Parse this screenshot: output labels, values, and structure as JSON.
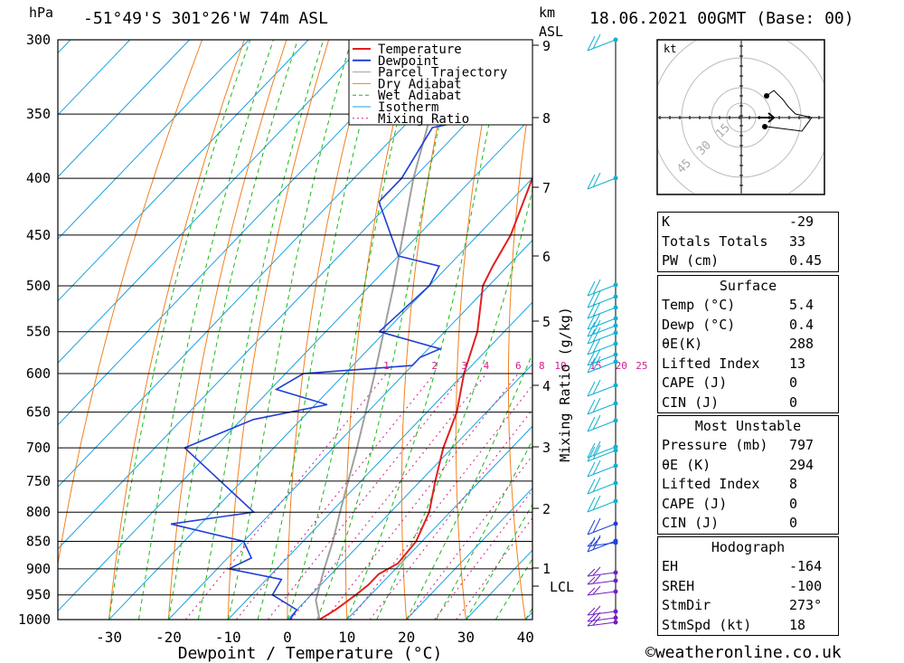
{
  "header": {
    "location": "-51°49'S 301°26'W 74m ASL",
    "datetime": "18.06.2021 00GMT (Base: 00)",
    "hpa_label": "hPa",
    "km_label": "km",
    "asl_label": "ASL"
  },
  "footer": {
    "credit": "©weatheronline.co.uk"
  },
  "chart_data": {
    "type": "skew-t",
    "xlabel": "Dewpoint / Temperature (°C)",
    "ylabel_right": "Mixing Ratio (g/kg)",
    "x_ticks": [
      -30,
      -20,
      -10,
      0,
      10,
      20,
      30,
      40
    ],
    "pressure_levels": [
      300,
      350,
      400,
      450,
      500,
      550,
      600,
      650,
      700,
      750,
      800,
      850,
      900,
      950,
      1000
    ],
    "km_ticks": [
      "9",
      "8",
      "7",
      "6",
      "5",
      "4",
      "3",
      "2",
      "1",
      "LCL"
    ],
    "mixing_ratio_labels": [
      "1",
      "2",
      "3",
      "4",
      "6",
      "8",
      "10",
      "15",
      "20",
      "25"
    ],
    "legend": [
      "Temperature",
      "Dewpoint",
      "Parcel Trajectory",
      "Dry Adiabat",
      "Wet Adiabat",
      "Isotherm",
      "Mixing Ratio"
    ],
    "temperature": [
      {
        "p": 1000,
        "t": 5.4
      },
      {
        "p": 980,
        "t": 6.5
      },
      {
        "p": 950,
        "t": 7.5
      },
      {
        "p": 930,
        "t": 8.0
      },
      {
        "p": 910,
        "t": 8.0
      },
      {
        "p": 890,
        "t": 9.5
      },
      {
        "p": 850,
        "t": 9.0
      },
      {
        "p": 800,
        "t": 6.5
      },
      {
        "p": 750,
        "t": 2.5
      },
      {
        "p": 700,
        "t": -1.5
      },
      {
        "p": 650,
        "t": -5.0
      },
      {
        "p": 600,
        "t": -10.0
      },
      {
        "p": 550,
        "t": -14.5
      },
      {
        "p": 500,
        "t": -21.0
      },
      {
        "p": 480,
        "t": -22.5
      },
      {
        "p": 450,
        "t": -24.5
      },
      {
        "p": 400,
        "t": -30.0
      },
      {
        "p": 370,
        "t": -34.0
      },
      {
        "p": 350,
        "t": -36.0
      },
      {
        "p": 330,
        "t": -38.0
      },
      {
        "p": 300,
        "t": -41.0
      }
    ],
    "dewpoint": [
      {
        "p": 1000,
        "t": 0.4
      },
      {
        "p": 980,
        "t": 0.0
      },
      {
        "p": 950,
        "t": -6.5
      },
      {
        "p": 920,
        "t": -7.5
      },
      {
        "p": 900,
        "t": -18.0
      },
      {
        "p": 880,
        "t": -16.0
      },
      {
        "p": 850,
        "t": -20.0
      },
      {
        "p": 820,
        "t": -35.0
      },
      {
        "p": 800,
        "t": -23.0
      },
      {
        "p": 700,
        "t": -45.0
      },
      {
        "p": 660,
        "t": -38.0
      },
      {
        "p": 640,
        "t": -28.0
      },
      {
        "p": 620,
        "t": -39.0
      },
      {
        "p": 600,
        "t": -37.0
      },
      {
        "p": 590,
        "t": -20.0
      },
      {
        "p": 580,
        "t": -20.0
      },
      {
        "p": 570,
        "t": -18.0
      },
      {
        "p": 550,
        "t": -31.0
      },
      {
        "p": 500,
        "t": -30.0
      },
      {
        "p": 480,
        "t": -31.5
      },
      {
        "p": 470,
        "t": -40.0
      },
      {
        "p": 420,
        "t": -52.0
      },
      {
        "p": 400,
        "t": -52.0
      },
      {
        "p": 360,
        "t": -55.0
      },
      {
        "p": 350,
        "t": -46.0
      },
      {
        "p": 330,
        "t": -47.0
      },
      {
        "p": 300,
        "t": -55.0
      }
    ],
    "parcel": [
      {
        "p": 1000,
        "t": 5.4
      },
      {
        "p": 960,
        "t": 1.6
      },
      {
        "p": 900,
        "t": -2.0
      },
      {
        "p": 850,
        "t": -5.0
      },
      {
        "p": 800,
        "t": -8.5
      },
      {
        "p": 700,
        "t": -16.0
      },
      {
        "p": 600,
        "t": -25.0
      },
      {
        "p": 500,
        "t": -36.0
      },
      {
        "p": 400,
        "t": -50.0
      },
      {
        "p": 300,
        "t": -66.0
      }
    ]
  },
  "hodograph": {
    "unit_label": "kt",
    "ring_labels": [
      "15",
      "30",
      "45"
    ]
  },
  "indices": [
    {
      "label": "K",
      "value": "-29"
    },
    {
      "label": "Totals Totals",
      "value": "33"
    },
    {
      "label": "PW (cm)",
      "value": "0.45"
    }
  ],
  "surface": {
    "title": "Surface",
    "rows": [
      {
        "label": "Temp (°C)",
        "value": "5.4"
      },
      {
        "label": "Dewp (°C)",
        "value": "0.4"
      },
      {
        "label": "θE(K)",
        "value": "288"
      },
      {
        "label": "Lifted Index",
        "value": "13"
      },
      {
        "label": "CAPE (J)",
        "value": "0"
      },
      {
        "label": "CIN (J)",
        "value": "0"
      }
    ]
  },
  "most_unstable": {
    "title": "Most Unstable",
    "rows": [
      {
        "label": "Pressure (mb)",
        "value": "797"
      },
      {
        "label": "θE (K)",
        "value": "294"
      },
      {
        "label": "Lifted Index",
        "value": "8"
      },
      {
        "label": "CAPE (J)",
        "value": "0"
      },
      {
        "label": "CIN (J)",
        "value": "0"
      }
    ]
  },
  "hodograph_table": {
    "title": "Hodograph",
    "rows": [
      {
        "label": "EH",
        "value": "-164"
      },
      {
        "label": "SREH",
        "value": "-100"
      },
      {
        "label": "StmDir",
        "value": "273°"
      },
      {
        "label": "StmSpd (kt)",
        "value": "18"
      }
    ]
  },
  "colors": {
    "temperature": "#e02020",
    "dewpoint": "#1f3fd8",
    "parcel": "#a0a0a0",
    "dry_adiabat": "#f08020",
    "wet_adiabat": "#18b818",
    "isotherm": "#1aa0e0",
    "mixing_ratio": "#d0208a",
    "wind": "#10b0d0"
  }
}
